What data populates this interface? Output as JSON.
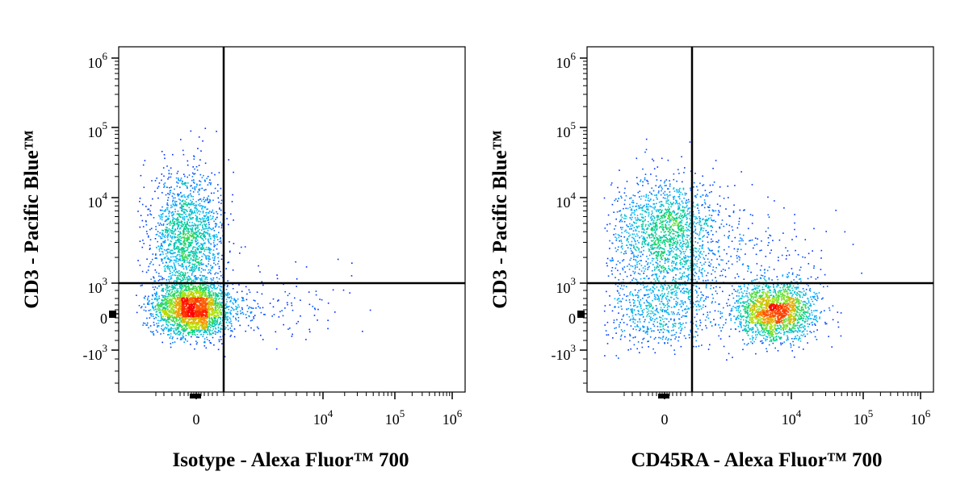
{
  "chart_data": [
    {
      "type": "scatter",
      "xlabel": "Isotype - Alexa Fluor™ 700",
      "ylabel": "CD3 - Pacific Blue™",
      "x_scale": "biexponential",
      "y_scale": "biexponential",
      "x_ticks": [
        {
          "base": "0",
          "exp": ""
        },
        {
          "base": "10",
          "exp": "4"
        },
        {
          "base": "10",
          "exp": "5"
        },
        {
          "base": "10",
          "exp": "6"
        }
      ],
      "y_ticks": [
        {
          "base": "10",
          "exp": "6"
        },
        {
          "base": "10",
          "exp": "5"
        },
        {
          "base": "10",
          "exp": "4"
        },
        {
          "base": "10",
          "exp": "3"
        },
        {
          "base": "0",
          "exp": ""
        },
        {
          "base": "-10",
          "exp": "3"
        }
      ],
      "quadrant_gate": {
        "x": 1500,
        "y": 1000
      },
      "populations": [
        {
          "x": 0,
          "y": 250,
          "weight": 0.6,
          "spread": "tight"
        },
        {
          "x": 0,
          "y": 3000,
          "weight": 0.4,
          "spread": "vertical"
        }
      ],
      "grid": false,
      "legend": "none"
    },
    {
      "type": "scatter",
      "xlabel": "CD45RA - Alexa Fluor™ 700",
      "ylabel": "CD3 - Pacific Blue™",
      "x_scale": "biexponential",
      "y_scale": "biexponential",
      "x_ticks": [
        {
          "base": "0",
          "exp": ""
        },
        {
          "base": "10",
          "exp": "4"
        },
        {
          "base": "10",
          "exp": "5"
        },
        {
          "base": "10",
          "exp": "6"
        }
      ],
      "y_ticks": [
        {
          "base": "10",
          "exp": "6"
        },
        {
          "base": "10",
          "exp": "5"
        },
        {
          "base": "10",
          "exp": "4"
        },
        {
          "base": "10",
          "exp": "3"
        },
        {
          "base": "0",
          "exp": ""
        },
        {
          "base": "-10",
          "exp": "3"
        }
      ],
      "quadrant_gate": {
        "x": 1500,
        "y": 1000
      },
      "populations": [
        {
          "x": 0,
          "y": 3000,
          "weight": 0.4,
          "spread": "vertical"
        },
        {
          "x": 0,
          "y": 300,
          "weight": 0.2,
          "spread": "wide"
        },
        {
          "x": 8000,
          "y": 250,
          "weight": 0.4,
          "spread": "tight"
        }
      ],
      "grid": false,
      "legend": "none"
    }
  ]
}
